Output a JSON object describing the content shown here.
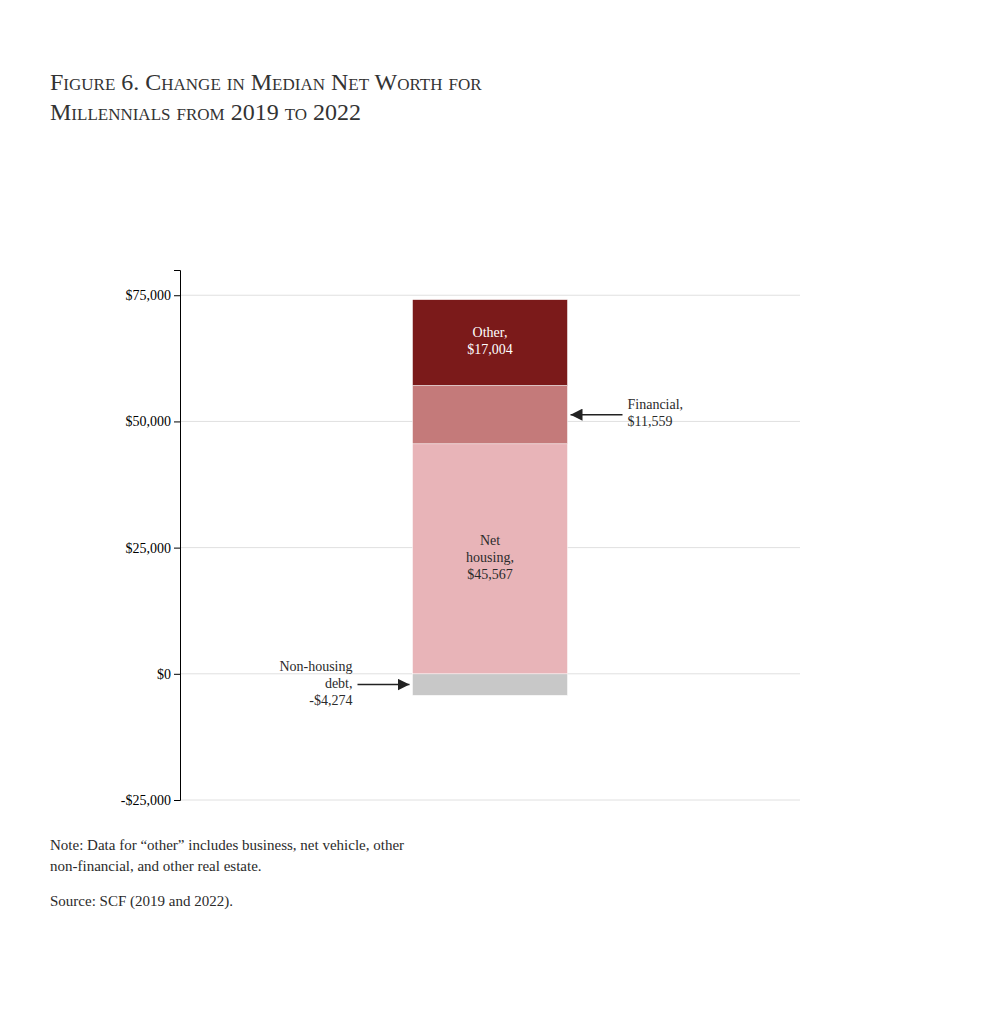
{
  "chart_data": {
    "type": "bar",
    "stacked": true,
    "title": "Figure 6. Change in Median Net Worth for\nMillennials from 2019 to 2022",
    "categories": [
      null
    ],
    "series": [
      {
        "color": "#C8C8C8",
        "values": [
          -4274
        ],
        "value_labels": [
          "Non-housing\ndebt,\n-$4,274"
        ]
      },
      {
        "color": "#E8B4B8",
        "values": [
          45567
        ],
        "value_labels": [
          "Net\nhousing,\n$45,567"
        ]
      },
      {
        "color": "#C47A7A",
        "values": [
          11559
        ],
        "value_labels": [
          "Financial,\n$11,559"
        ]
      },
      {
        "color": "#7B1A1A",
        "values": [
          17004
        ],
        "value_labels": [
          "Other,\n$17,004"
        ]
      }
    ],
    "data_labels": true,
    "ylim": [
      -25000,
      80000
    ],
    "yticks": [
      {
        "value": -25000,
        "label": "-$25,000"
      },
      {
        "value": 0,
        "label": "$0"
      },
      {
        "value": 25000,
        "label": "$25,000"
      },
      {
        "value": 50000,
        "label": "$50,000"
      },
      {
        "value": 75000,
        "label": "$75,000"
      }
    ],
    "grid": true,
    "tick_labels": "y",
    "annotations": [
      "Note: Data for “other” includes business, net vehicle, other\nnon-financial, and other real estate.",
      "Source: SCF (2019 and 2022)."
    ]
  }
}
